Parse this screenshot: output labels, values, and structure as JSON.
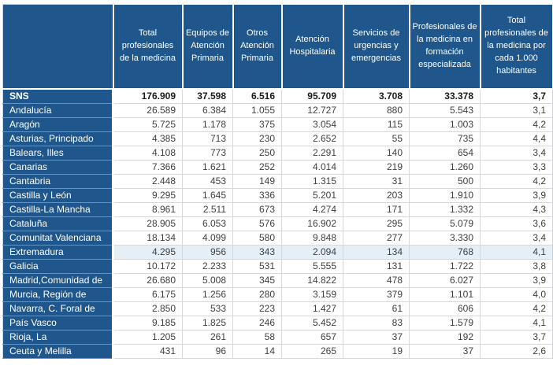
{
  "chart_data": {
    "type": "table",
    "title": "",
    "corner_label": "",
    "columns": [
      "Total profesionales de la medicina",
      "Equipos de Atención Primaria",
      "Otros Atención Primaria",
      "Atención Hospitalaria",
      "Servicios de urgencias y emergencias",
      "Profesionales de la medicina en formación especializada",
      "Total profesionales de la medicina por cada 1.000 habitantes"
    ],
    "rows": [
      {
        "label": "SNS",
        "values": [
          "176.909",
          "37.598",
          "6.516",
          "95.709",
          "3.708",
          "33.378",
          "3,7"
        ],
        "bold": true,
        "highlighted": false
      },
      {
        "label": "Andalucía",
        "values": [
          "26.589",
          "6.384",
          "1.055",
          "12.727",
          "880",
          "5.543",
          "3,1"
        ],
        "bold": false,
        "highlighted": false
      },
      {
        "label": "Aragón",
        "values": [
          "5.725",
          "1.178",
          "375",
          "3.054",
          "115",
          "1.003",
          "4,2"
        ],
        "bold": false,
        "highlighted": false
      },
      {
        "label": "Asturias, Principado",
        "values": [
          "4.385",
          "713",
          "230",
          "2.652",
          "55",
          "735",
          "4,4"
        ],
        "bold": false,
        "highlighted": false
      },
      {
        "label": "Balears, Illes",
        "values": [
          "4.108",
          "773",
          "250",
          "2.291",
          "140",
          "654",
          "3,4"
        ],
        "bold": false,
        "highlighted": false
      },
      {
        "label": "Canarias",
        "values": [
          "7.366",
          "1.621",
          "252",
          "4.014",
          "219",
          "1.260",
          "3,3"
        ],
        "bold": false,
        "highlighted": false
      },
      {
        "label": "Cantabria",
        "values": [
          "2.448",
          "453",
          "149",
          "1.315",
          "31",
          "500",
          "4,2"
        ],
        "bold": false,
        "highlighted": false
      },
      {
        "label": "Castilla y León",
        "values": [
          "9.295",
          "1.645",
          "336",
          "5.201",
          "203",
          "1.910",
          "3,9"
        ],
        "bold": false,
        "highlighted": false
      },
      {
        "label": "Castilla-La Mancha",
        "values": [
          "8.961",
          "2.511",
          "673",
          "4.274",
          "171",
          "1.332",
          "4,3"
        ],
        "bold": false,
        "highlighted": false
      },
      {
        "label": "Cataluña",
        "values": [
          "28.905",
          "6.053",
          "576",
          "16.902",
          "295",
          "5.079",
          "3,6"
        ],
        "bold": false,
        "highlighted": false
      },
      {
        "label": "Comunitat Valenciana",
        "values": [
          "18.134",
          "4.099",
          "580",
          "9.848",
          "277",
          "3.330",
          "3,4"
        ],
        "bold": false,
        "highlighted": false
      },
      {
        "label": "Extremadura",
        "values": [
          "4.295",
          "956",
          "343",
          "2.094",
          "134",
          "768",
          "4,1"
        ],
        "bold": false,
        "highlighted": true
      },
      {
        "label": "Galicia",
        "values": [
          "10.172",
          "2.233",
          "531",
          "5.555",
          "131",
          "1.722",
          "3,8"
        ],
        "bold": false,
        "highlighted": false
      },
      {
        "label": "Madrid,Comunidad de",
        "values": [
          "26.680",
          "5.008",
          "345",
          "14.822",
          "478",
          "6.027",
          "3,9"
        ],
        "bold": false,
        "highlighted": false
      },
      {
        "label": "Murcia, Región de",
        "values": [
          "6.175",
          "1.256",
          "280",
          "3.159",
          "379",
          "1.101",
          "4,0"
        ],
        "bold": false,
        "highlighted": false
      },
      {
        "label": "Navarra, C. Foral de",
        "values": [
          "2.850",
          "533",
          "223",
          "1.427",
          "61",
          "606",
          "4,2"
        ],
        "bold": false,
        "highlighted": false
      },
      {
        "label": "País Vasco",
        "values": [
          "9.185",
          "1.825",
          "246",
          "5.452",
          "83",
          "1.579",
          "4,1"
        ],
        "bold": false,
        "highlighted": false
      },
      {
        "label": "Rioja, La",
        "values": [
          "1.205",
          "261",
          "58",
          "657",
          "37",
          "192",
          "3,7"
        ],
        "bold": false,
        "highlighted": false
      },
      {
        "label": "Ceuta y Melilla",
        "values": [
          "431",
          "96",
          "14",
          "265",
          "19",
          "37",
          "2,6"
        ],
        "bold": false,
        "highlighted": false
      }
    ],
    "number_format": {
      "thousands_separator": ".",
      "decimal_separator": ","
    },
    "layout_hints": {
      "header_rows": 1,
      "row_header_column": true,
      "grid": true
    },
    "colors": {
      "header_bg": "#1F578C",
      "header_text": "#FFFFFF",
      "row_label_bg": "#1F578C",
      "row_label_text": "#FFFFFF",
      "row_label_divider": "#6C93B6",
      "grid_line": "#D8D8D8",
      "value_text": "#3F3F3F",
      "bold_value_text": "#1A1A1A",
      "highlight_row_bg": "#E6EFF6",
      "outer_border": "#CDD3D8",
      "background": "#FFFFFF"
    }
  }
}
